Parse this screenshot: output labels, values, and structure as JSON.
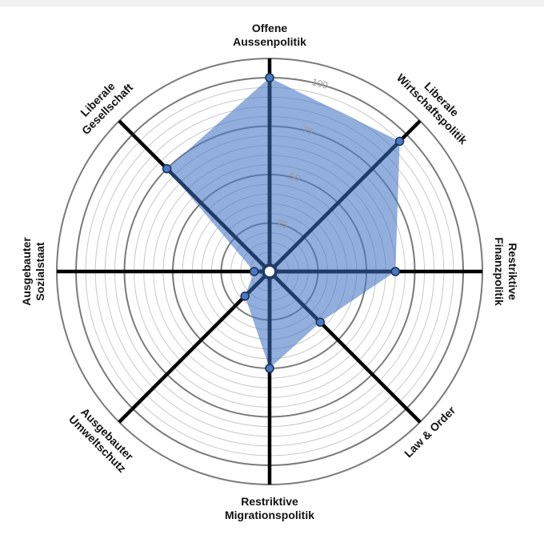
{
  "chart_data": {
    "type": "radar",
    "axes": [
      {
        "lines": [
          "Offene",
          "Aussenpolitik"
        ]
      },
      {
        "lines": [
          "Liberale",
          "Wirtschaftspolitik"
        ]
      },
      {
        "lines": [
          "Restriktive",
          "Finanzpolitik"
        ]
      },
      {
        "lines": [
          "Law & Order"
        ]
      },
      {
        "lines": [
          "Restriktive",
          "Migrationspolitik"
        ]
      },
      {
        "lines": [
          "Ausgebauter",
          "Umweltschutz"
        ]
      },
      {
        "lines": [
          "Ausgebauter",
          "Sozialstaat"
        ]
      },
      {
        "lines": [
          "Liberale",
          "Gesellschaft"
        ]
      }
    ],
    "values": [
      100,
      95,
      65,
      37,
      50,
      18,
      8,
      75
    ],
    "rmax": 100,
    "ticks": [
      25,
      50,
      75,
      100
    ],
    "fill_color": "#4a78c4",
    "line_color": "#1f3d6b",
    "spoke_color": "#000000",
    "grid_color_major": "#7a7a7a",
    "grid_color_minor": "#c8c8c8"
  }
}
